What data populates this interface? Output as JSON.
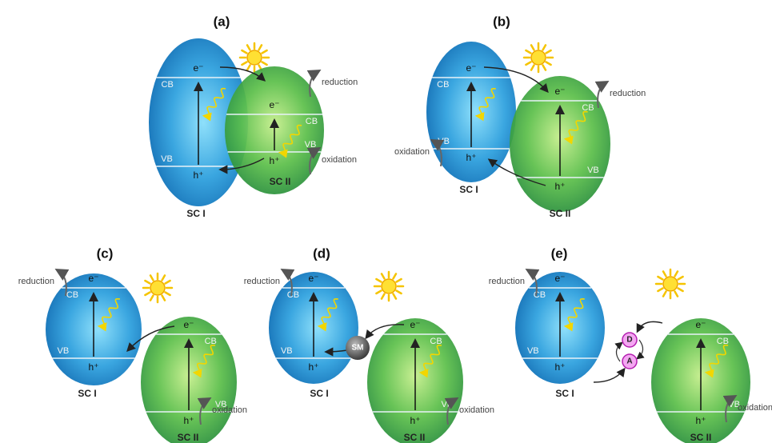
{
  "panels": [
    {
      "label": "(a)",
      "semiconductors": [
        {
          "name": "SC I",
          "cb": "CB",
          "vb": "VB",
          "electron": "e⁻",
          "hole": "h⁺"
        },
        {
          "name": "SC II",
          "cb": "CB",
          "vb": "VB",
          "electron": "e⁻",
          "hole": "h⁺"
        }
      ],
      "reduction": "reduction",
      "oxidation": "oxidation"
    },
    {
      "label": "(b)",
      "semiconductors": [
        {
          "name": "SC I",
          "cb": "CB",
          "vb": "VB",
          "electron": "e⁻",
          "hole": "h⁺"
        },
        {
          "name": "SC II",
          "cb": "CB",
          "vb": "VB",
          "electron": "e⁻",
          "hole": "h⁺"
        }
      ],
      "reduction": "reduction",
      "oxidation": "oxidation"
    },
    {
      "label": "(c)",
      "semiconductors": [
        {
          "name": "SC I",
          "cb": "CB",
          "vb": "VB",
          "electron": "e⁻",
          "hole": "h⁺"
        },
        {
          "name": "SC II",
          "cb": "CB",
          "vb": "VB",
          "electron": "e⁻",
          "hole": "h⁺"
        }
      ],
      "reduction": "reduction",
      "oxidation": "oxidation"
    },
    {
      "label": "(d)",
      "semiconductors": [
        {
          "name": "SC I",
          "cb": "CB",
          "vb": "VB",
          "electron": "e⁻",
          "hole": "h⁺"
        },
        {
          "name": "SC II",
          "cb": "CB",
          "vb": "VB",
          "electron": "e⁻",
          "hole": "h⁺"
        }
      ],
      "reduction": "reduction",
      "oxidation": "oxidation",
      "mediator": "SM"
    },
    {
      "label": "(e)",
      "semiconductors": [
        {
          "name": "SC I",
          "cb": "CB",
          "vb": "VB",
          "electron": "e⁻",
          "hole": "h⁺"
        },
        {
          "name": "SC II",
          "cb": "CB",
          "vb": "VB",
          "electron": "e⁻",
          "hole": "h⁺"
        }
      ],
      "reduction": "reduction",
      "oxidation": "oxidation",
      "redox_pair": [
        "D",
        "A"
      ]
    }
  ]
}
